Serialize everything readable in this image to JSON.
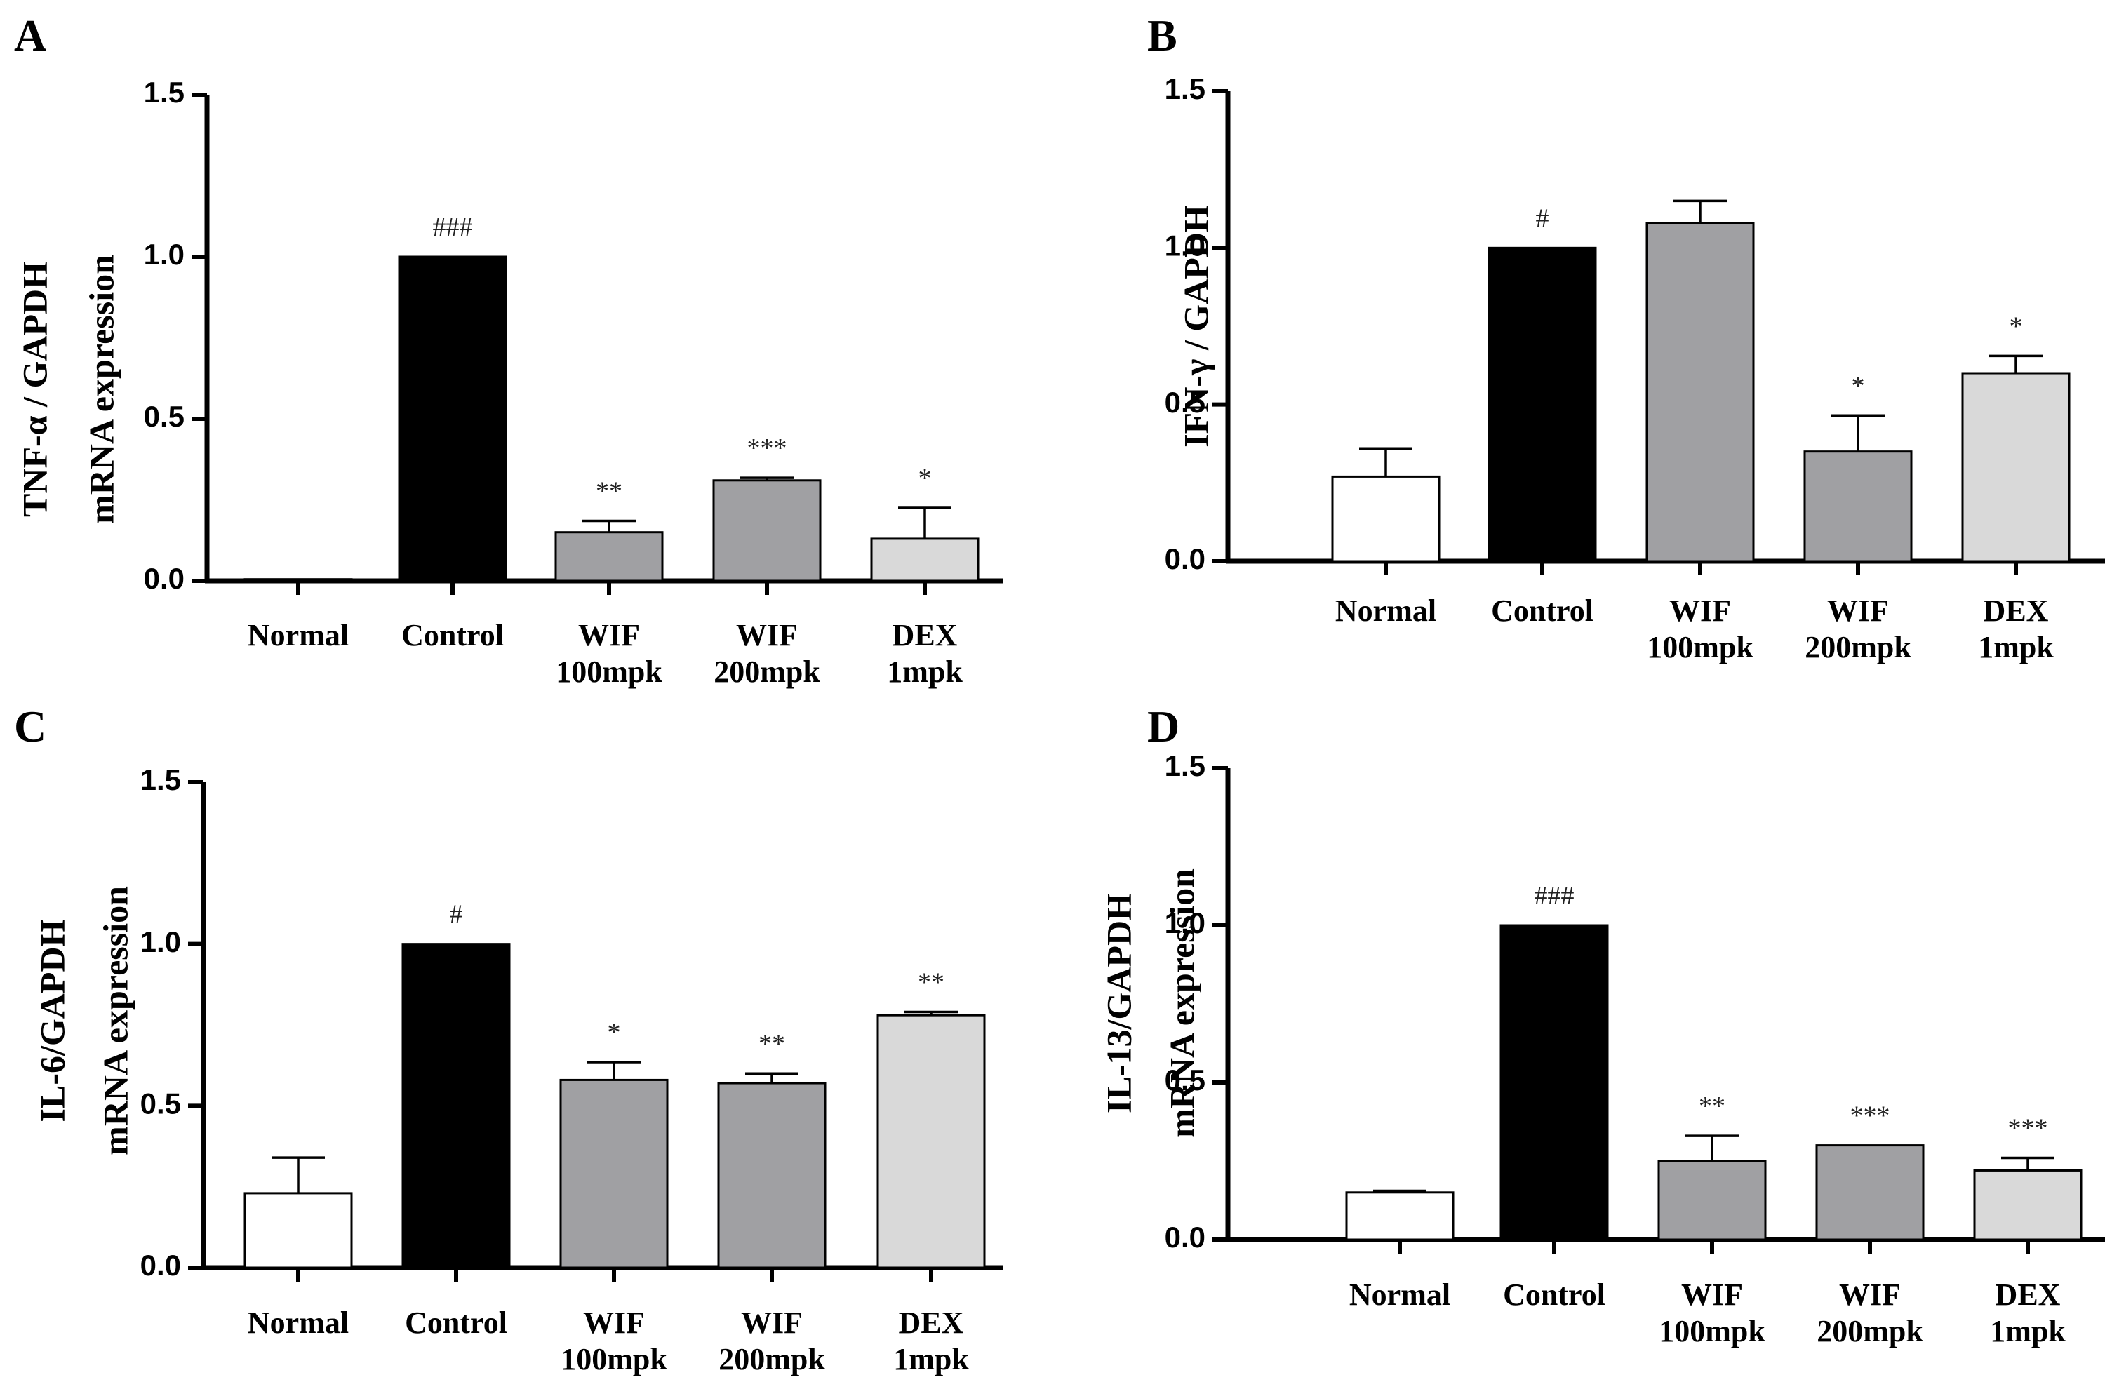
{
  "chart_data": [
    {
      "type": "bar",
      "panel": "A",
      "ylabel_lines": [
        "TNF-α / GAPDH",
        "mRNA expression"
      ],
      "ylim": [
        0,
        1.5
      ],
      "yticks": [
        "0.0",
        "0.5",
        "1.0",
        "1.5"
      ],
      "categories": [
        [
          "Normal"
        ],
        [
          "Control"
        ],
        [
          "WIF",
          "100mpk"
        ],
        [
          "WIF",
          "200mpk"
        ],
        [
          "DEX",
          "1mpk"
        ]
      ],
      "values": [
        0.005,
        1.0,
        0.15,
        0.31,
        0.13
      ],
      "errors": [
        0,
        0,
        0.035,
        0.008,
        0.095
      ],
      "colors": [
        "#ffffff",
        "#000000",
        "#a0a0a3",
        "#a0a0a3",
        "#d9d9d9"
      ],
      "significance": [
        "",
        "###",
        "**",
        "***",
        "*"
      ]
    },
    {
      "type": "bar",
      "panel": "B",
      "ylabel_lines": [
        "IFN-γ / GAPDH"
      ],
      "ylim": [
        0,
        1.5
      ],
      "yticks": [
        "0.0",
        "0.5",
        "1.0",
        "1.5"
      ],
      "categories": [
        [
          "Normal"
        ],
        [
          "Control"
        ],
        [
          "WIF",
          "100mpk"
        ],
        [
          "WIF",
          "200mpk"
        ],
        [
          "DEX",
          "1mpk"
        ]
      ],
      "values": [
        0.27,
        1.0,
        1.08,
        0.35,
        0.6
      ],
      "errors": [
        0.09,
        0,
        0.07,
        0.115,
        0.055
      ],
      "colors": [
        "#ffffff",
        "#000000",
        "#a0a0a3",
        "#a0a0a3",
        "#d9d9d9"
      ],
      "significance": [
        "",
        "#",
        "",
        "*",
        "*"
      ]
    },
    {
      "type": "bar",
      "panel": "C",
      "ylabel_lines": [
        "IL-6/GAPDH",
        "mRNA expression"
      ],
      "ylim": [
        0,
        1.5
      ],
      "yticks": [
        "0.0",
        "0.5",
        "1.0",
        "1.5"
      ],
      "categories": [
        [
          "Normal"
        ],
        [
          "Control"
        ],
        [
          "WIF",
          "100mpk"
        ],
        [
          "WIF",
          "200mpk"
        ],
        [
          "DEX",
          "1mpk"
        ]
      ],
      "values": [
        0.23,
        1.0,
        0.58,
        0.57,
        0.78
      ],
      "errors": [
        0.11,
        0,
        0.055,
        0.03,
        0.01
      ],
      "colors": [
        "#ffffff",
        "#000000",
        "#a0a0a3",
        "#a0a0a3",
        "#d9d9d9"
      ],
      "significance": [
        "",
        "#",
        "*",
        "**",
        "**"
      ]
    },
    {
      "type": "bar",
      "panel": "D",
      "ylabel_lines": [
        "IL-13/GAPDH",
        "mRNA expression"
      ],
      "ylim": [
        0,
        1.5
      ],
      "yticks": [
        "0.0",
        "0.5",
        "1.0",
        "1.5"
      ],
      "categories": [
        [
          "Normal"
        ],
        [
          "Control"
        ],
        [
          "WIF",
          "100mpk"
        ],
        [
          "WIF",
          "200mpk"
        ],
        [
          "DEX",
          "1mpk"
        ]
      ],
      "values": [
        0.15,
        1.0,
        0.25,
        0.3,
        0.22
      ],
      "errors": [
        0.005,
        0,
        0.08,
        0,
        0.04
      ],
      "colors": [
        "#ffffff",
        "#000000",
        "#a0a0a3",
        "#a0a0a3",
        "#d9d9d9"
      ],
      "significance": [
        "",
        "###",
        "**",
        "***",
        "***"
      ]
    }
  ]
}
